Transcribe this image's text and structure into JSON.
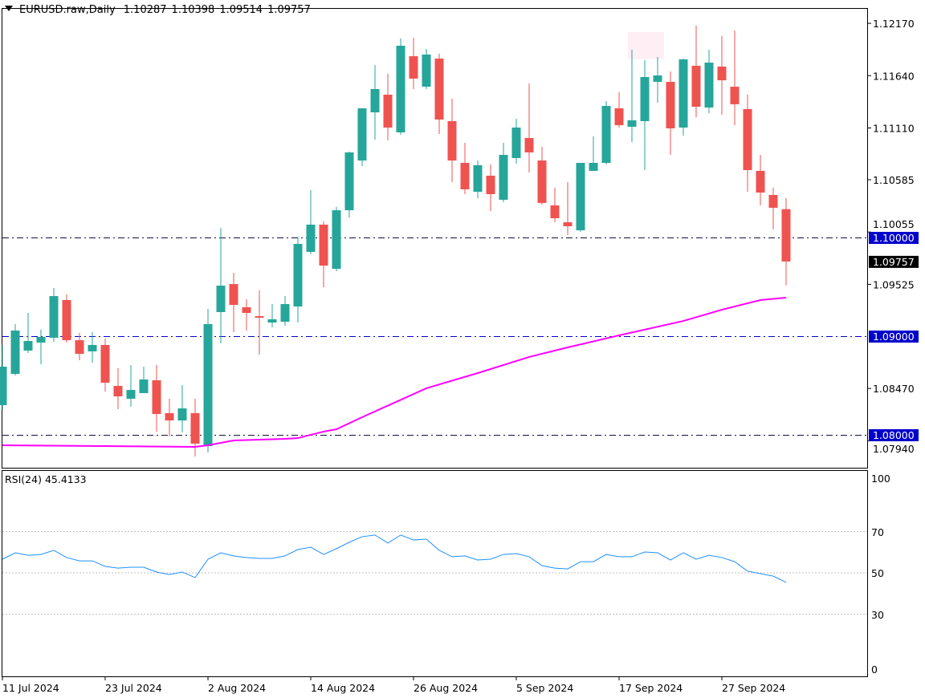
{
  "header": {
    "symbol": "EURUSD.raw,Daily",
    "open": "1.10287",
    "high": "1.10398",
    "low": "1.09514",
    "close": "1.09757"
  },
  "colors": {
    "bull": "#26a69a",
    "bear": "#ef5350",
    "ma": "#ff00ff",
    "rsi": "#1e90ff",
    "level_line": "#0000cc",
    "price_tag_bg": "#000000",
    "level_tag_bg": "#0000cc"
  },
  "chart_data": [
    {
      "type": "candlestick",
      "title": "EURUSD.raw,Daily",
      "ohlc_fields": [
        "open",
        "high",
        "low",
        "close"
      ],
      "candles": [
        [
          1.08301,
          1.08911,
          1.08252,
          1.08691
        ],
        [
          1.08618,
          1.09122,
          1.08602,
          1.09057
        ],
        [
          1.08854,
          1.09236,
          1.08829,
          1.08951
        ],
        [
          1.08935,
          1.09065,
          1.08715,
          1.08992
        ],
        [
          1.08984,
          1.09488,
          1.08943,
          1.09406
        ],
        [
          1.09366,
          1.09423,
          1.08935,
          1.08959
        ],
        [
          1.08959,
          1.09033,
          1.08756,
          1.08821
        ],
        [
          1.08846,
          1.09041,
          1.08732,
          1.08911
        ],
        [
          1.08911,
          1.08976,
          1.08439,
          1.08528
        ],
        [
          1.08496,
          1.08675,
          1.0826,
          1.0839
        ],
        [
          1.08366,
          1.08707,
          1.08285,
          1.08455
        ],
        [
          1.08423,
          1.08691,
          1.08423,
          1.08561
        ],
        [
          1.08553,
          1.08707,
          1.08033,
          1.08211
        ],
        [
          1.0822,
          1.08366,
          1.07984,
          1.08146
        ],
        [
          1.08146,
          1.08504,
          1.08024,
          1.08268
        ],
        [
          1.0822,
          1.08366,
          1.0778,
          1.07911
        ],
        [
          1.07886,
          1.09276,
          1.07821,
          1.09122
        ],
        [
          1.09244,
          1.10098,
          1.08927,
          1.09512
        ],
        [
          1.09528,
          1.09642,
          1.09041,
          1.09317
        ],
        [
          1.09293,
          1.09374,
          1.09057,
          1.09236
        ],
        [
          1.09203,
          1.09463,
          1.08813,
          1.09187
        ],
        [
          1.09138,
          1.09325,
          1.09089,
          1.09171
        ],
        [
          1.09146,
          1.09406,
          1.09106,
          1.09325
        ],
        [
          1.09301,
          1.10008,
          1.09138,
          1.09935
        ],
        [
          1.09854,
          1.1048,
          1.09829,
          1.1013
        ],
        [
          1.1013,
          1.10163,
          1.09496,
          1.09715
        ],
        [
          1.09683,
          1.10309,
          1.09659,
          1.10276
        ],
        [
          1.10276,
          1.1087,
          1.10203,
          1.10862
        ],
        [
          1.1078,
          1.11309,
          1.10724,
          1.11309
        ],
        [
          1.11268,
          1.11748,
          1.10992,
          1.11504
        ],
        [
          1.11447,
          1.11659,
          1.10984,
          1.11114
        ],
        [
          1.11065,
          1.12016,
          1.11041,
          1.11943
        ],
        [
          1.11837,
          1.12024,
          1.11504,
          1.1161
        ],
        [
          1.11528,
          1.11911,
          1.11504,
          1.11854
        ],
        [
          1.11813,
          1.11862,
          1.11049,
          1.11195
        ],
        [
          1.11179,
          1.11406,
          1.10561,
          1.1078
        ],
        [
          1.10756,
          1.10959,
          1.10439,
          1.10488
        ],
        [
          1.10463,
          1.1078,
          1.10398,
          1.10732
        ],
        [
          1.10626,
          1.1074,
          1.10268,
          1.10439
        ],
        [
          1.10382,
          1.10959,
          1.10358,
          1.10837
        ],
        [
          1.10805,
          1.11203,
          1.10748,
          1.11114
        ],
        [
          1.11008,
          1.11561,
          1.10659,
          1.10862
        ],
        [
          1.1078,
          1.10919,
          1.10333,
          1.1035
        ],
        [
          1.10325,
          1.10504,
          1.10154,
          1.10195
        ],
        [
          1.10154,
          1.10561,
          1.10024,
          1.10114
        ],
        [
          1.10073,
          1.10756,
          1.10057,
          1.10756
        ],
        [
          1.10675,
          1.11024,
          1.10675,
          1.10756
        ],
        [
          1.10756,
          1.11382,
          1.1074,
          1.11333
        ],
        [
          1.11309,
          1.11472,
          1.11114,
          1.11138
        ],
        [
          1.11122,
          1.11902,
          1.10967,
          1.11187
        ],
        [
          1.11179,
          1.11797,
          1.10683,
          1.11626
        ],
        [
          1.11577,
          1.11829,
          1.11366,
          1.11642
        ],
        [
          1.11577,
          1.11683,
          1.10837,
          1.11106
        ],
        [
          1.11114,
          1.11813,
          1.11032,
          1.11805
        ],
        [
          1.1174,
          1.12146,
          1.11219,
          1.11325
        ],
        [
          1.11317,
          1.11902,
          1.1126,
          1.11772
        ],
        [
          1.11732,
          1.12041,
          1.11244,
          1.11593
        ],
        [
          1.11528,
          1.12098,
          1.11138,
          1.1135
        ],
        [
          1.11301,
          1.11447,
          1.10463,
          1.10683
        ],
        [
          1.10675,
          1.10837,
          1.10325,
          1.10455
        ],
        [
          1.10431,
          1.10504,
          1.10081,
          1.10301
        ],
        [
          1.10287,
          1.10398,
          1.09514,
          1.09757
        ]
      ],
      "moving_average_points": [
        [
          0,
          1.07894
        ],
        [
          8,
          1.07886
        ],
        [
          15,
          1.07878
        ],
        [
          16,
          1.07894
        ],
        [
          17,
          1.07919
        ],
        [
          18,
          1.07943
        ],
        [
          22,
          1.07959
        ],
        [
          23,
          1.07967
        ],
        [
          25,
          1.08033
        ],
        [
          26,
          1.08057
        ],
        [
          28,
          1.08179
        ],
        [
          33,
          1.08472
        ],
        [
          37,
          1.08626
        ],
        [
          41,
          1.08789
        ],
        [
          44,
          1.08886
        ],
        [
          48,
          1.09008
        ],
        [
          53,
          1.09154
        ],
        [
          56,
          1.09268
        ],
        [
          59,
          1.09366
        ],
        [
          61,
          1.0939
        ]
      ],
      "horizontal_levels": [
        "1.10000",
        "1.09000",
        "1.08000"
      ],
      "current_price": "1.09757",
      "y_ticks": [
        "1.12170",
        "1.11640",
        "1.11110",
        "1.10585",
        "1.10055",
        "1.09525",
        "1.08470",
        "1.07940"
      ],
      "y_tick_values": [
        1.1217,
        1.1164,
        1.1111,
        1.10585,
        1.10055,
        1.09525,
        1.0847,
        1.0794
      ],
      "x_ticks": [
        {
          "index": 0,
          "label": "11 Jul 2024"
        },
        {
          "index": 8,
          "label": "23 Jul 2024"
        },
        {
          "index": 16,
          "label": "2 Aug 2024"
        },
        {
          "index": 24,
          "label": "14 Aug 2024"
        },
        {
          "index": 32,
          "label": "26 Aug 2024"
        },
        {
          "index": 40,
          "label": "5 Sep 2024"
        },
        {
          "index": 48,
          "label": "17 Sep 2024"
        },
        {
          "index": 56,
          "label": "27 Sep 2024"
        }
      ],
      "highlight_zone": {
        "from_index": 49,
        "to_index": 52,
        "price_low": 1.11809,
        "price_high": 1.12082
      }
    },
    {
      "type": "line",
      "title": "RSI(24) 45.4133",
      "series": [
        {
          "name": "RSI(24)",
          "values": [
            56.6,
            59.7,
            58.5,
            58.9,
            60.9,
            57.4,
            55.8,
            55.8,
            53.1,
            52.3,
            52.7,
            52.7,
            50.4,
            49.2,
            50.4,
            47.7,
            56.6,
            59.7,
            58.2,
            57.4,
            57.0,
            57.0,
            58.2,
            61.3,
            62.4,
            58.9,
            61.7,
            64.8,
            67.5,
            68.3,
            64.4,
            68.3,
            65.9,
            66.3,
            60.9,
            57.8,
            58.2,
            56.2,
            56.6,
            58.9,
            59.3,
            57.8,
            53.5,
            52.3,
            51.9,
            55.4,
            55.4,
            58.9,
            57.8,
            57.8,
            60.1,
            59.7,
            56.2,
            59.7,
            56.6,
            58.5,
            57.4,
            55.4,
            50.8,
            49.6,
            48.4,
            45.4133
          ]
        }
      ],
      "levels": [
        70,
        50,
        30
      ],
      "y_ticks": [
        "100",
        "70",
        "50",
        "30",
        "0"
      ],
      "ylim": [
        0,
        100
      ]
    }
  ]
}
